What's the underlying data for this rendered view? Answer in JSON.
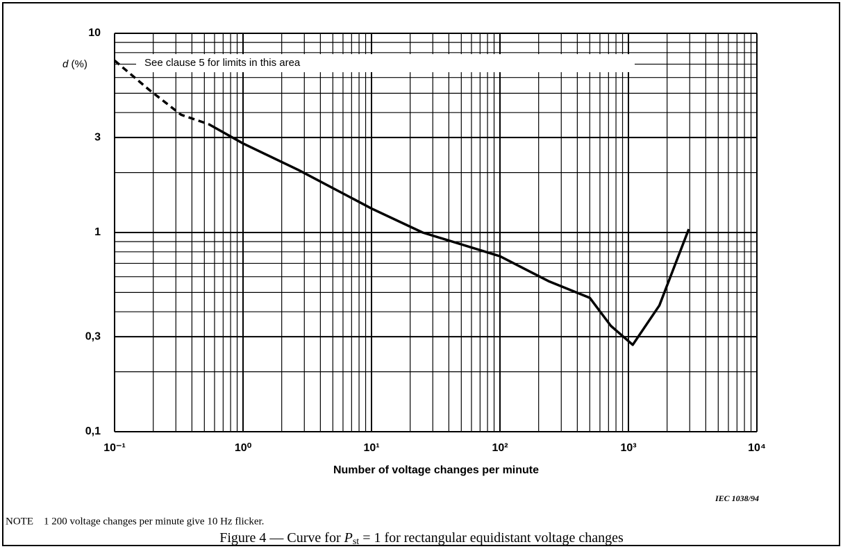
{
  "chart_data": {
    "type": "line",
    "y_label": [
      "d",
      " (%)"
    ],
    "annotation": "See clause 5 for limits in this area",
    "x_label": "Number of voltage changes per minute",
    "source": "IEC 1038/94",
    "note": "NOTE    1 200 voltage changes per minute give 10 Hz flicker.",
    "caption": [
      "Figure 4 — Curve for ",
      "P",
      "st",
      " = 1 for rectangular equidistant voltage changes"
    ],
    "xscale": "log",
    "yscale": "log",
    "grid": true,
    "minor_grid": true,
    "xlim": [
      0.1,
      10000
    ],
    "ylim": [
      0.1,
      10
    ],
    "xticks": [
      {
        "value": 0.1,
        "label": "10⁻¹"
      },
      {
        "value": 1,
        "label": "10⁰"
      },
      {
        "value": 10,
        "label": "10¹"
      },
      {
        "value": 100,
        "label": "10²"
      },
      {
        "value": 1000,
        "label": "10³"
      },
      {
        "value": 10000,
        "label": "10⁴"
      }
    ],
    "yticks": [
      {
        "value": 0.1,
        "label": "0,1"
      },
      {
        "value": 0.3,
        "label": "0,3"
      },
      1,
      3,
      10
    ],
    "series": [
      {
        "color": "#000000",
        "style": "dashed",
        "x": [
          0.1,
          0.186,
          0.33,
          0.54
        ],
        "values": [
          7.3,
          5.2,
          3.9,
          3.5
        ]
      },
      {
        "color": "#000000",
        "style": "solid",
        "x": [
          0.54,
          1,
          2.7,
          10,
          25,
          100,
          239,
          500,
          730,
          1080,
          1740,
          2950
        ],
        "values": [
          3.5,
          2.8,
          2.06,
          1.32,
          1.0,
          0.76,
          0.57,
          0.47,
          0.34,
          0.273,
          0.43,
          1.04
        ]
      }
    ]
  }
}
